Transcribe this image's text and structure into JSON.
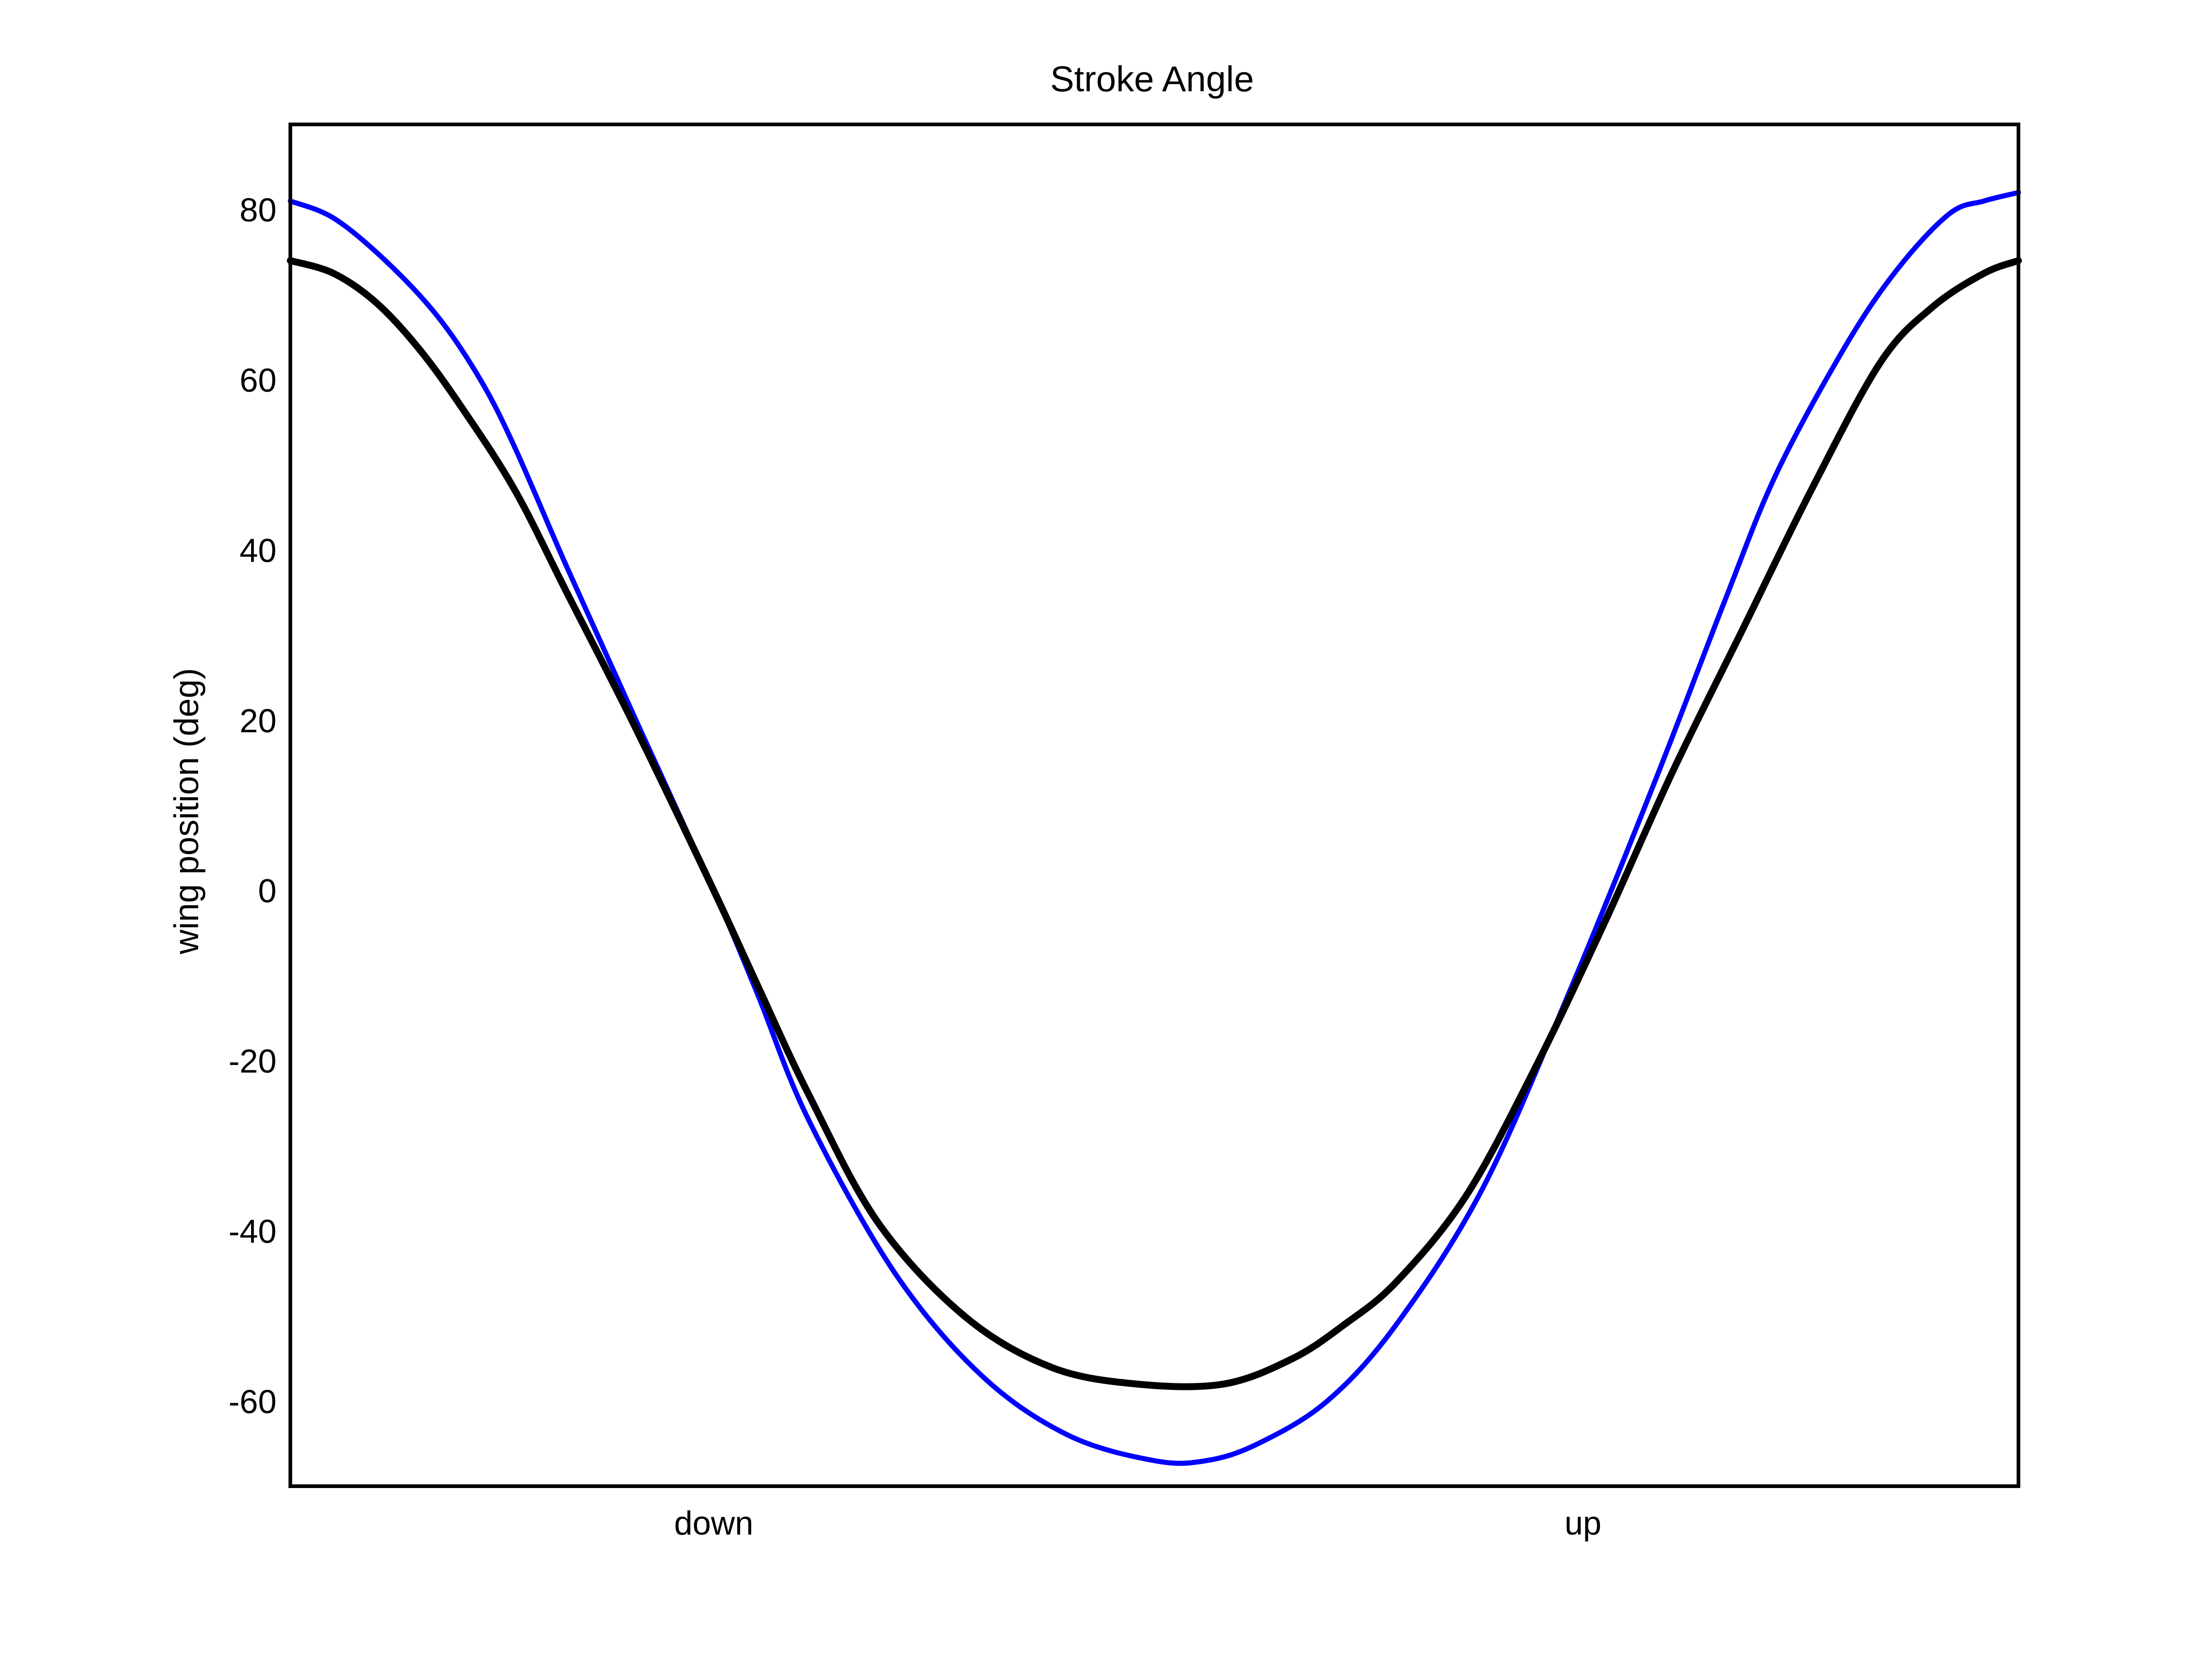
{
  "chart_data": {
    "type": "line",
    "title": "Stroke Angle",
    "xlabel": "",
    "ylabel": "wing position (deg)",
    "xlim": [
      0,
      1
    ],
    "ylim": [
      -70,
      90
    ],
    "y_ticks": [
      80,
      60,
      40,
      20,
      0,
      -20,
      -40,
      -60
    ],
    "x_ticks": [
      {
        "label": "down",
        "x": 0.245
      },
      {
        "label": "up",
        "x": 0.748
      }
    ],
    "grid": false,
    "legend": "none",
    "series": [
      {
        "color": "#0000ff",
        "x": [
          0.0,
          0.025,
          0.055,
          0.085,
          0.11,
          0.13,
          0.16,
          0.2,
          0.245,
          0.27,
          0.3,
          0.35,
          0.4,
          0.45,
          0.5,
          0.53,
          0.56,
          0.6,
          0.64,
          0.69,
          0.74,
          0.79,
          0.83,
          0.86,
          0.9,
          0.93,
          0.96,
          0.98,
          1.0
        ],
        "y": [
          81,
          79,
          74,
          67.5,
          60,
          52,
          38,
          20,
          0,
          -12,
          -27,
          -45,
          -57,
          -64,
          -67,
          -67,
          -65,
          -60,
          -51,
          -35,
          -12,
          13,
          34,
          49,
          64,
          73,
          79.5,
          81,
          82
        ]
      },
      {
        "color": "#000000",
        "x": [
          0.0,
          0.025,
          0.05,
          0.075,
          0.1,
          0.13,
          0.16,
          0.2,
          0.245,
          0.27,
          0.3,
          0.34,
          0.39,
          0.44,
          0.49,
          0.54,
          0.58,
          0.61,
          0.64,
          0.68,
          0.72,
          0.76,
          0.8,
          0.84,
          0.88,
          0.92,
          0.95,
          0.98,
          1.0
        ],
        "y": [
          74,
          72.5,
          69,
          63.5,
          56.5,
          47,
          35,
          19,
          0,
          -11,
          -24,
          -39,
          -50,
          -56,
          -58,
          -58,
          -55,
          -51,
          -46,
          -36,
          -21,
          -4,
          14,
          30.5,
          47,
          62,
          68.5,
          72.5,
          74
        ]
      }
    ]
  }
}
